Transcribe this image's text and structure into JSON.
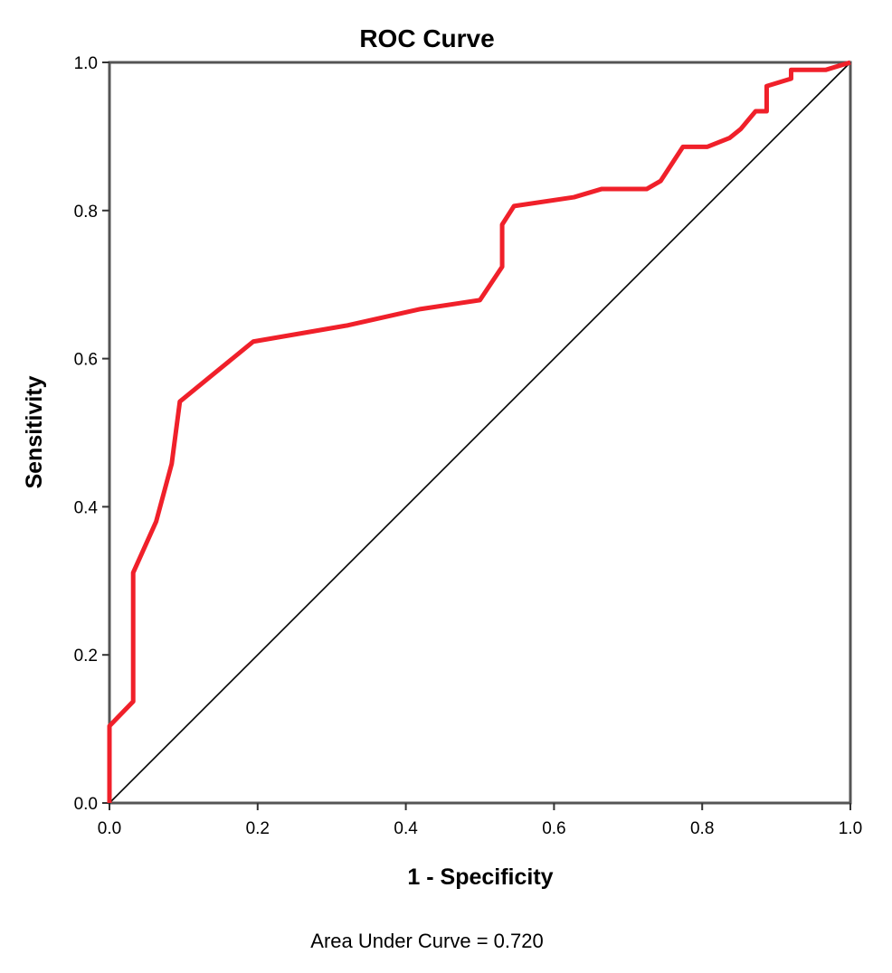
{
  "chart_data": {
    "type": "line",
    "title": "ROC Curve",
    "xlabel": "1 - Specificity",
    "ylabel": "Sensitivity",
    "xlim": [
      0,
      1
    ],
    "ylim": [
      0,
      1
    ],
    "xticks": [
      "0.0",
      "0.2",
      "0.4",
      "0.6",
      "0.8",
      "1.0"
    ],
    "yticks": [
      "0.0",
      "0.2",
      "0.4",
      "0.6",
      "0.8",
      "1.0"
    ],
    "grid": false,
    "annotation": "Area Under Curve = 0.720",
    "colors": {
      "roc": "#f0202a",
      "reference": "#000000",
      "frame": "#555555"
    },
    "series": [
      {
        "name": "ROC",
        "x": [
          0,
          0,
          0.032,
          0.032,
          0.063,
          0.084,
          0.095,
          0.139,
          0.194,
          0.322,
          0.42,
          0.5,
          0.53,
          0.53,
          0.546,
          0.627,
          0.664,
          0.725,
          0.744,
          0.774,
          0.807,
          0.837,
          0.852,
          0.872,
          0.887,
          0.887,
          0.92,
          0.92,
          0.967,
          1
        ],
        "y": [
          0,
          0.104,
          0.137,
          0.311,
          0.38,
          0.458,
          0.542,
          0.578,
          0.623,
          0.645,
          0.667,
          0.679,
          0.724,
          0.781,
          0.806,
          0.818,
          0.829,
          0.829,
          0.84,
          0.886,
          0.886,
          0.898,
          0.91,
          0.934,
          0.934,
          0.968,
          0.978,
          0.99,
          0.99,
          1
        ]
      },
      {
        "name": "Reference",
        "x": [
          0,
          1
        ],
        "y": [
          0,
          1
        ]
      }
    ]
  }
}
